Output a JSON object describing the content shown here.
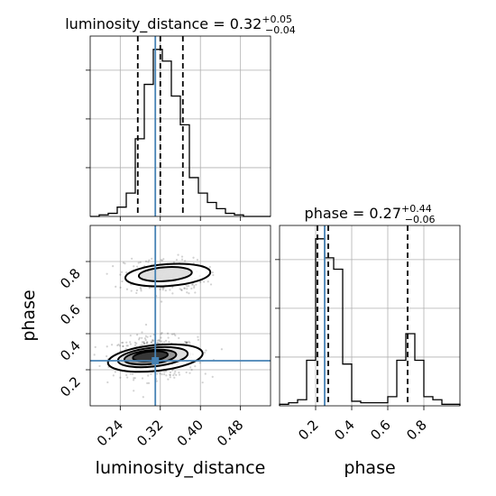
{
  "chart_data": [
    {
      "type": "histogram",
      "panel": "luminosity_distance marginal",
      "title": {
        "name": "luminosity_distance",
        "median": "0.32",
        "plus": "+0.05",
        "minus": "−0.04"
      },
      "x_range": [
        0.18,
        0.54
      ],
      "xticks": [
        0.24,
        0.32,
        0.4,
        0.48
      ],
      "yticks_count": 3,
      "grid": true,
      "quantiles": [
        0.275,
        0.32,
        0.365
      ],
      "truth": 0.31,
      "bins": [
        0.18,
        0.198,
        0.216,
        0.234,
        0.252,
        0.27,
        0.288,
        0.306,
        0.324,
        0.342,
        0.36,
        0.378,
        0.396,
        0.414,
        0.432,
        0.45,
        0.468,
        0.486,
        0.504,
        0.522,
        0.54
      ],
      "counts": [
        0,
        2,
        4,
        12,
        30,
        100,
        170,
        215,
        200,
        155,
        118,
        50,
        30,
        18,
        10,
        4,
        2,
        0,
        0,
        0
      ]
    },
    {
      "type": "histogram",
      "panel": "phase marginal",
      "title": {
        "name": "phase",
        "median": "0.27",
        "plus": "+0.44",
        "minus": "−0.06"
      },
      "x_range": [
        0.0,
        1.0
      ],
      "xticks": [
        0.2,
        0.4,
        0.6,
        0.8
      ],
      "xlabel": "phase",
      "grid": true,
      "quantiles": [
        0.21,
        0.27,
        0.71
      ],
      "truth": 0.25,
      "bins": [
        0.0,
        0.05,
        0.1,
        0.15,
        0.2,
        0.25,
        0.3,
        0.35,
        0.4,
        0.45,
        0.5,
        0.55,
        0.6,
        0.65,
        0.7,
        0.75,
        0.8,
        0.85,
        0.9,
        0.95,
        1.0
      ],
      "counts": [
        2,
        4,
        8,
        60,
        220,
        195,
        180,
        55,
        6,
        4,
        4,
        4,
        12,
        60,
        95,
        60,
        12,
        8,
        2,
        2
      ]
    },
    {
      "type": "scatter-contour",
      "panel": "2D luminosity_distance vs phase",
      "xlabel": "luminosity_distance",
      "ylabel": "phase",
      "x_range": [
        0.18,
        0.54
      ],
      "y_range": [
        0.0,
        1.0
      ],
      "xticks": [
        0.24,
        0.32,
        0.4,
        0.48
      ],
      "yticks": [
        0.2,
        0.4,
        0.6,
        0.8
      ],
      "grid": true,
      "truth": {
        "x": 0.31,
        "y": 0.25
      },
      "modes": [
        {
          "x": 0.31,
          "y": 0.27,
          "sx": 0.042,
          "sy": 0.055,
          "n": 620
        },
        {
          "x": 0.33,
          "y": 0.72,
          "sx": 0.04,
          "sy": 0.05,
          "n": 300
        }
      ],
      "contours": [
        {
          "x": 0.31,
          "y": 0.265,
          "rx": 0.095,
          "ry": 0.13,
          "rot": -6,
          "fill": "#ffffff"
        },
        {
          "x": 0.305,
          "y": 0.27,
          "rx": 0.07,
          "ry": 0.095,
          "rot": -6,
          "fill": "#d9d9d9"
        },
        {
          "x": 0.3,
          "y": 0.27,
          "rx": 0.052,
          "ry": 0.07,
          "rot": -6,
          "fill": "#8c8c8c"
        },
        {
          "x": 0.3,
          "y": 0.275,
          "rx": 0.035,
          "ry": 0.048,
          "rot": -6,
          "fill": "#262626"
        },
        {
          "x": 0.335,
          "y": 0.725,
          "rx": 0.085,
          "ry": 0.11,
          "rot": -4,
          "fill": "#ffffff"
        },
        {
          "x": 0.33,
          "y": 0.73,
          "rx": 0.053,
          "ry": 0.07,
          "rot": -4,
          "fill": "#d9d9d9"
        }
      ]
    }
  ],
  "colors": {
    "truth": "#4682b4",
    "hist": "#000000",
    "quantile": "#000000"
  }
}
